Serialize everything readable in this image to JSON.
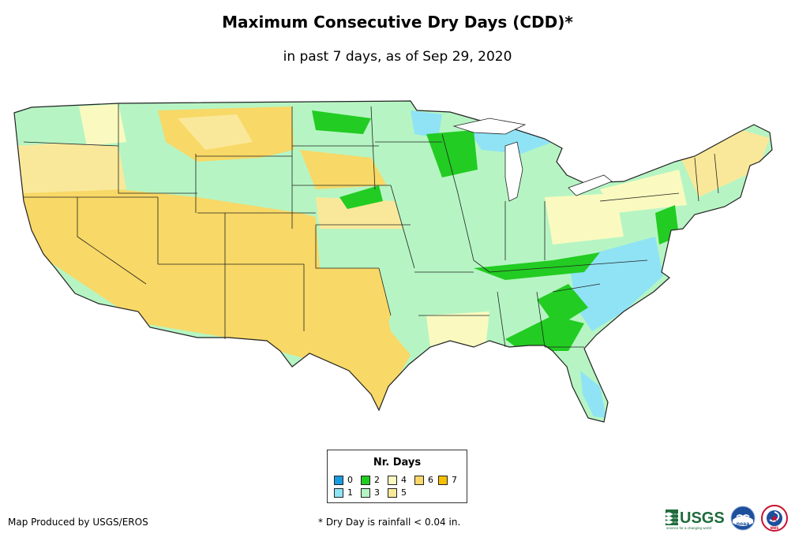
{
  "title": "Maximum Consecutive Dry Days (CDD)*",
  "subtitle": "in past 7 days, as of Sep 29, 2020",
  "legend": {
    "title": "Nr. Days",
    "items": [
      {
        "label": "0",
        "color": "#1a9ae0"
      },
      {
        "label": "1",
        "color": "#8fe3f5"
      },
      {
        "label": "2",
        "color": "#22cc22"
      },
      {
        "label": "3",
        "color": "#b6f5c3"
      },
      {
        "label": "4",
        "color": "#fafac0"
      },
      {
        "label": "5",
        "color": "#fae89a"
      },
      {
        "label": "6",
        "color": "#f8d866"
      },
      {
        "label": "7",
        "color": "#f5c000"
      }
    ]
  },
  "credit": "Map Produced by USGS/EROS",
  "footnote": "* Dry Day is rainfall < 0.04 in.",
  "logos": {
    "usgs_text": "USGS",
    "usgs_tagline": "science for a changing world",
    "noaa_text": "noaa",
    "nws_text": "NWS"
  }
}
